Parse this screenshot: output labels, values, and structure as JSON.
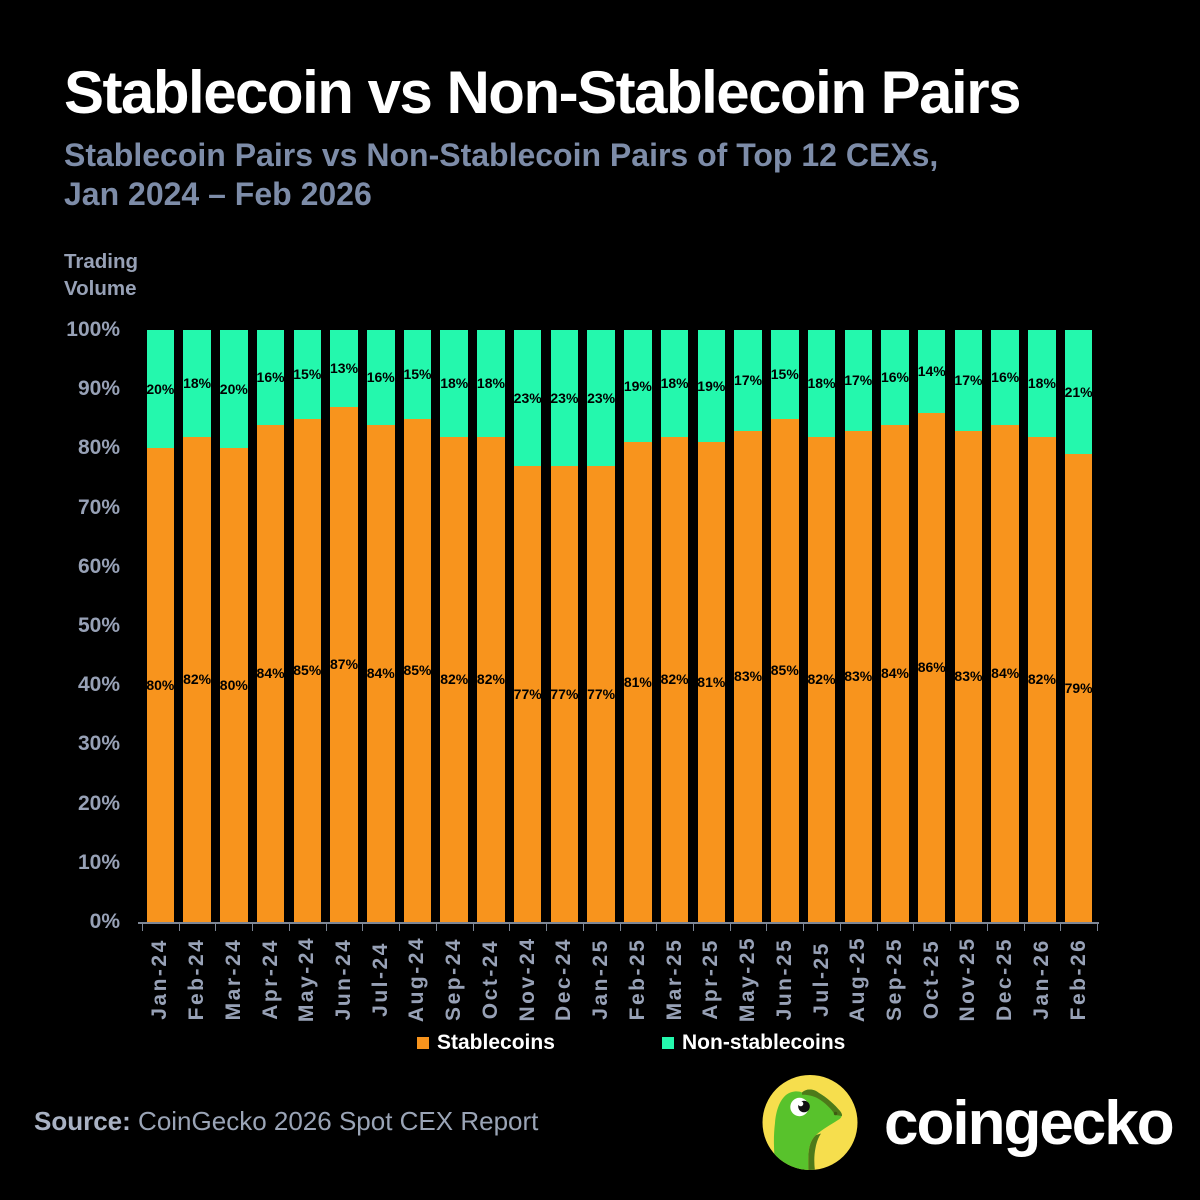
{
  "header": {
    "title": "Stablecoin vs Non-Stablecoin Pairs",
    "subtitle_line1": "Stablecoin Pairs vs Non-Stablecoin Pairs of Top 12 CEXs,",
    "subtitle_line2": "Jan 2024 – Feb 2026"
  },
  "chart_data": {
    "type": "bar",
    "stacked": true,
    "title": "Stablecoin vs Non-Stablecoin Pairs",
    "ylabel": "Trading Volume",
    "ylim": [
      0,
      100
    ],
    "y_tick_step": 10,
    "y_tick_suffix": "%",
    "grid": false,
    "legend_position": "bottom",
    "categories": [
      "Jan-24",
      "Feb-24",
      "Mar-24",
      "Apr-24",
      "May-24",
      "Jun-24",
      "Jul-24",
      "Aug-24",
      "Sep-24",
      "Oct-24",
      "Nov-24",
      "Dec-24",
      "Jan-25",
      "Feb-25",
      "Mar-25",
      "Apr-25",
      "May-25",
      "Jun-25",
      "Jul-25",
      "Aug-25",
      "Sep-25",
      "Oct-25",
      "Nov-25",
      "Dec-25",
      "Jan-26",
      "Feb-26"
    ],
    "series": [
      {
        "name": "Stablecoins",
        "color": "#F8941D",
        "values": [
          80,
          82,
          80,
          84,
          85,
          87,
          84,
          85,
          82,
          82,
          77,
          77,
          77,
          81,
          82,
          81,
          83,
          85,
          82,
          83,
          84,
          86,
          83,
          84,
          82,
          79
        ]
      },
      {
        "name": "Non-stablecoins",
        "color": "#24F8AD",
        "values": [
          20,
          18,
          20,
          16,
          15,
          13,
          16,
          15,
          18,
          18,
          23,
          23,
          23,
          19,
          18,
          19,
          17,
          15,
          18,
          17,
          16,
          14,
          17,
          16,
          18,
          21
        ]
      }
    ],
    "value_label_suffix": "%"
  },
  "axis": {
    "ylabel_line1": "Trading",
    "ylabel_line2": "Volume"
  },
  "legend": {
    "stablecoins": "Stablecoins",
    "non_stablecoins": "Non-stablecoins"
  },
  "footer": {
    "source_label": "Source:",
    "source_text": " CoinGecko 2026 Spot CEX Report",
    "brand": "coingecko"
  },
  "colors": {
    "background": "#000000",
    "stablecoins": "#F8941D",
    "non_stablecoins": "#24F8AD",
    "title": "#FFFFFF",
    "subtitle": "#7D8CA8",
    "axis_text": "#97A1B6",
    "gecko_yellow": "#F6DE4D",
    "gecko_green": "#58C22C",
    "gecko_dark_green": "#4D7A1A"
  }
}
